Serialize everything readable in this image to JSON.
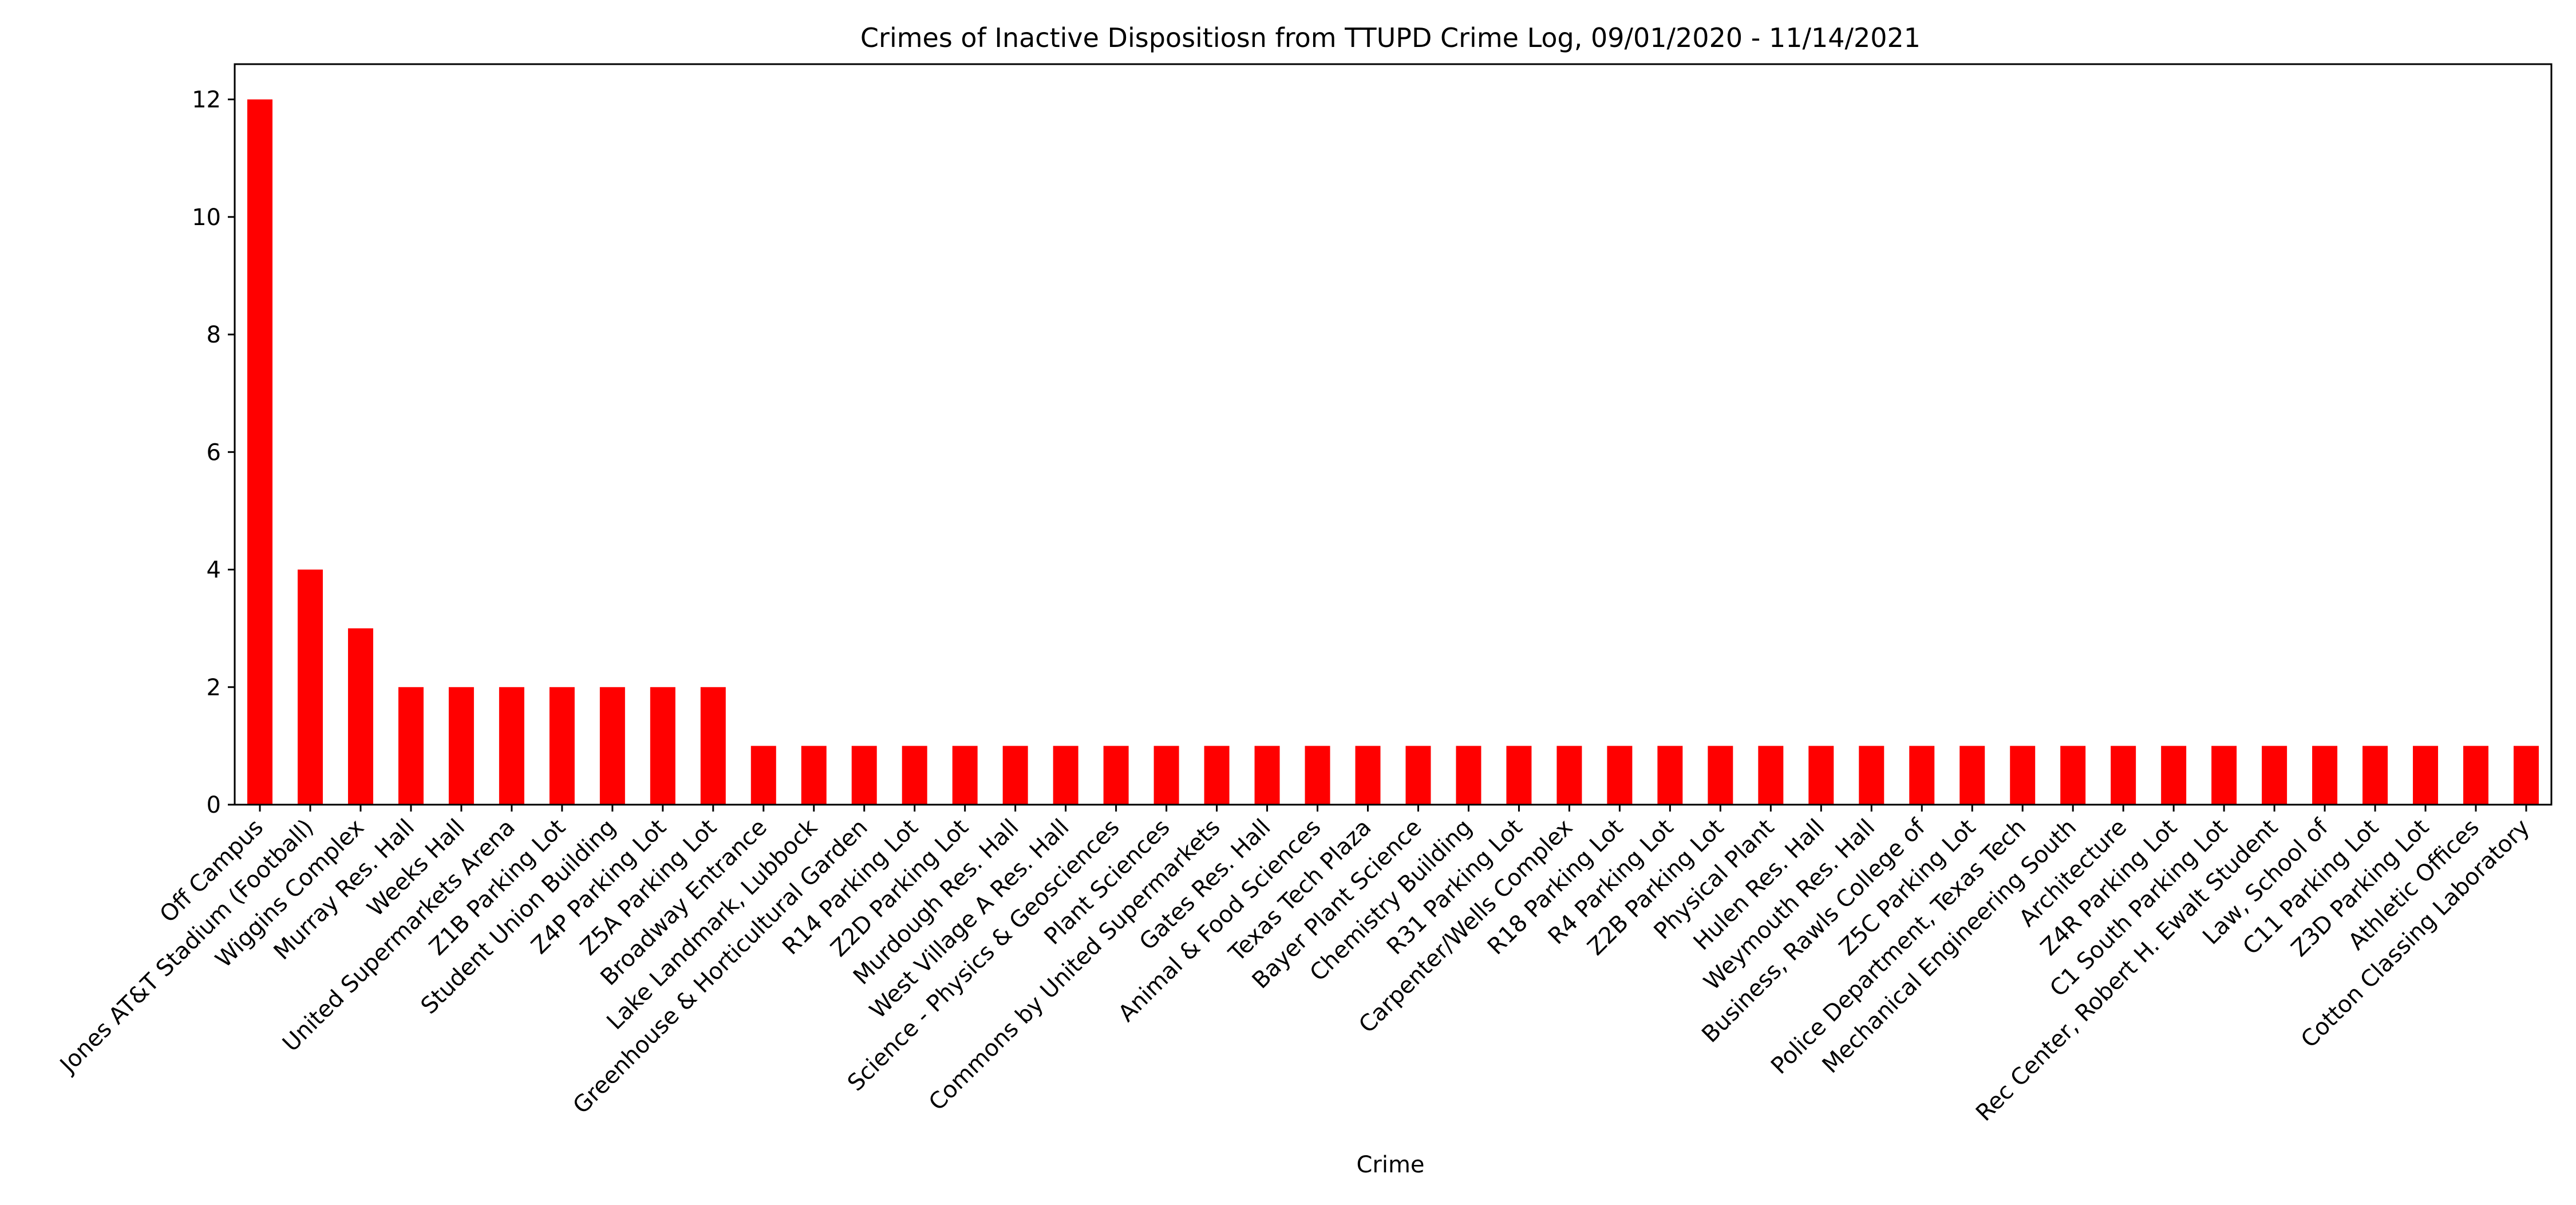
{
  "chart_data": {
    "type": "bar",
    "title": "Crimes of Inactive Dispositiosn from TTUPD Crime Log, 09/01/2020 - 11/14/2021",
    "xlabel": "Crime",
    "ylabel": "",
    "ylim": [
      0,
      12.6
    ],
    "yticks": [
      0,
      2,
      4,
      6,
      8,
      10,
      12
    ],
    "grid": false,
    "bar_color": "#ff0000",
    "categories": [
      "Off Campus",
      "Jones AT&T Stadium (Football)",
      "Wiggins Complex",
      "Murray Res. Hall",
      "Weeks Hall",
      "United Supermarkets Arena",
      "Z1B Parking Lot",
      "Student Union Building",
      "Z4P Parking Lot",
      "Z5A Parking Lot",
      "Broadway Entrance",
      "Lake Landmark, Lubbock",
      "Greenhouse & Horticultural Garden",
      "R14 Parking Lot",
      "Z2D Parking Lot",
      "Murdough Res. Hall",
      "West Village A Res. Hall",
      "Science - Physics & Geosciences",
      "Plant Sciences",
      "Commons by United Supermarkets",
      "Gates Res. Hall",
      "Animal & Food Sciences",
      "Texas Tech Plaza",
      "Bayer Plant Science",
      "Chemistry Building",
      "R31 Parking Lot",
      "Carpenter/Wells Complex",
      "R18 Parking Lot",
      "R4 Parking Lot",
      "Z2B Parking Lot",
      "Physical Plant",
      "Hulen Res. Hall",
      "Weymouth Res. Hall",
      "Business, Rawls College of",
      "Z5C Parking Lot",
      "Police Department, Texas Tech",
      "Mechanical Engineering South",
      "Architecture",
      "Z4R Parking Lot",
      "C1 South Parking Lot",
      "Rec Center, Robert H. Ewalt Student",
      "Law, School of",
      "C11 Parking Lot",
      "Z3D Parking Lot",
      "Athletic Offices",
      "Cotton Classing Laboratory"
    ],
    "values": [
      12,
      4,
      3,
      2,
      2,
      2,
      2,
      2,
      2,
      2,
      1,
      1,
      1,
      1,
      1,
      1,
      1,
      1,
      1,
      1,
      1,
      1,
      1,
      1,
      1,
      1,
      1,
      1,
      1,
      1,
      1,
      1,
      1,
      1,
      1,
      1,
      1,
      1,
      1,
      1,
      1,
      1,
      1,
      1,
      1,
      1
    ]
  }
}
